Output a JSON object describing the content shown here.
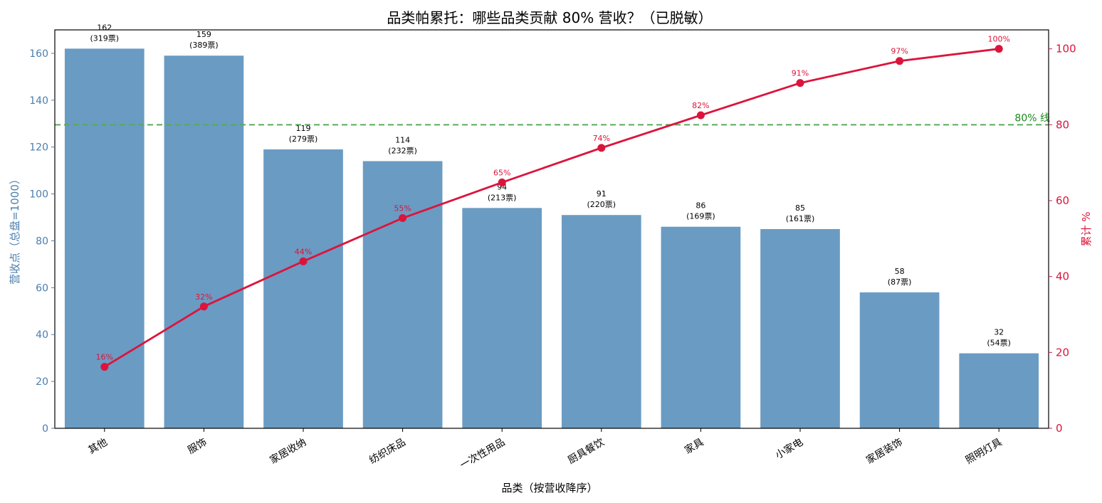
{
  "chart_data": {
    "type": "bar",
    "title": "品类帕累托：哪些品类贡献 80% 营收？（已脱敏）",
    "xlabel": "品类（按营收降序）",
    "ylabel_left": "营收点（总盘=1000）",
    "ylabel_right": "累计 %",
    "ylim_left": [
      0,
      170
    ],
    "ylim_right": [
      0,
      105
    ],
    "yticks_left": [
      0,
      20,
      40,
      60,
      80,
      100,
      120,
      140,
      160
    ],
    "yticks_right": [
      0,
      20,
      40,
      60,
      80,
      100
    ],
    "categories": [
      "其他",
      "服饰",
      "家居收纳",
      "纺织床品",
      "一次性用品",
      "厨具餐饮",
      "家具",
      "小家电",
      "家居装饰",
      "照明灯具"
    ],
    "series": [
      {
        "values": [
          162,
          159,
          119,
          114,
          94,
          91,
          86,
          85,
          58,
          32
        ],
        "labels": [
          "162\n(319票)",
          "159\n(389票)",
          "119\n(279票)",
          "114\n(232票)",
          "94\n(213票)",
          "91\n(220票)",
          "86\n(169票)",
          "85\n(161票)",
          "58\n(87票)",
          "32\n(54票)"
        ],
        "color": "#6a9bc3",
        "axis": "left"
      },
      {
        "values": [
          16.2,
          32.1,
          44.0,
          55.4,
          64.8,
          73.9,
          82.5,
          91.0,
          96.8,
          100
        ],
        "labels": [
          "16%",
          "32%",
          "44%",
          "55%",
          "65%",
          "74%",
          "82%",
          "91%",
          "97%",
          "100%"
        ],
        "color": "#dc143c",
        "axis": "right"
      }
    ],
    "reference_line": {
      "value": 80,
      "axis": "right",
      "label": "80% 线",
      "color": "#5aaa5a"
    },
    "grid": false,
    "colors": {
      "left_axis": "#4a7fae",
      "right_axis": "#dc143c"
    }
  }
}
